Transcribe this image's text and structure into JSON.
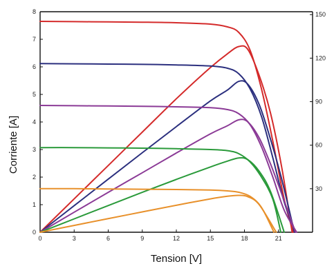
{
  "chart_data": {
    "type": "line",
    "xlabel": "Tension [V]",
    "ylabel": "Corriente [A]",
    "xlim": [
      0,
      24
    ],
    "ylim": [
      0,
      8
    ],
    "y2lim": [
      0,
      152
    ],
    "x_ticks": [
      "0",
      "3",
      "6",
      "9",
      "12",
      "15",
      "18",
      "21"
    ],
    "y_ticks": [
      "0",
      "1",
      "2",
      "3",
      "4",
      "5",
      "6",
      "7",
      "8"
    ],
    "y2_ticks": [
      "30",
      "60",
      "90",
      "120",
      "150"
    ],
    "x_tick_values": [
      0,
      3,
      6,
      9,
      12,
      15,
      18,
      21
    ],
    "y_tick_values": [
      0,
      1,
      2,
      3,
      4,
      5,
      6,
      7,
      8
    ],
    "y2_tick_values": [
      30,
      60,
      90,
      120,
      150
    ],
    "grid": false,
    "series": [
      {
        "color": "#d42a2a",
        "axis": "left",
        "kind": "current",
        "x": [
          0,
          3,
          6,
          9,
          12,
          15,
          16.5,
          17.5,
          18.5,
          19.5,
          20.5,
          21.5,
          22.3
        ],
        "y": [
          7.65,
          7.64,
          7.63,
          7.62,
          7.6,
          7.55,
          7.45,
          7.25,
          6.6,
          5.2,
          3.3,
          1.2,
          0
        ]
      },
      {
        "color": "#d42a2a",
        "axis": "right",
        "kind": "power",
        "x": [
          0,
          3,
          6,
          9,
          12,
          15,
          16.5,
          17.5,
          18.3,
          19.3,
          20.3,
          21.3,
          22.2
        ],
        "y": [
          0,
          23,
          46,
          69,
          92,
          113.5,
          123,
          128,
          126,
          108,
          82,
          44,
          0
        ]
      },
      {
        "color": "#2b2f7e",
        "axis": "left",
        "kind": "current",
        "x": [
          0,
          3,
          6,
          9,
          12,
          15,
          16.5,
          17.5,
          18.5,
          19.5,
          20.5,
          21.5,
          22.5
        ],
        "y": [
          6.12,
          6.11,
          6.1,
          6.09,
          6.07,
          6.03,
          5.95,
          5.75,
          5.2,
          4.2,
          2.7,
          1.1,
          0
        ]
      },
      {
        "color": "#2b2f7e",
        "axis": "right",
        "kind": "power",
        "x": [
          0,
          3,
          6,
          9,
          12,
          15,
          16.5,
          17.5,
          18.3,
          19.3,
          20.3,
          21.3,
          22.4
        ],
        "y": [
          0,
          18.3,
          36.6,
          54.8,
          72.8,
          90.5,
          98,
          104,
          102,
          88,
          64,
          36,
          0
        ]
      },
      {
        "color": "#8b3a96",
        "axis": "left",
        "kind": "current",
        "x": [
          0,
          3,
          6,
          9,
          12,
          15,
          16.5,
          17.5,
          18.5,
          19.5,
          20.5,
          21.5,
          22.6
        ],
        "y": [
          4.6,
          4.59,
          4.58,
          4.57,
          4.55,
          4.52,
          4.45,
          4.3,
          3.9,
          3.1,
          2.0,
          0.8,
          0
        ]
      },
      {
        "color": "#8b3a96",
        "axis": "right",
        "kind": "power",
        "x": [
          0,
          3,
          6,
          9,
          12,
          15,
          16.5,
          17.5,
          18.3,
          19.3,
          20.3,
          21.3,
          22.5
        ],
        "y": [
          0,
          13.8,
          27.5,
          41,
          54.6,
          67.8,
          73.4,
          77.5,
          76,
          65,
          47,
          26,
          0
        ]
      },
      {
        "color": "#2a9a3a",
        "axis": "left",
        "kind": "current",
        "x": [
          0,
          3,
          6,
          9,
          12,
          15,
          16.5,
          17.5,
          18.5,
          19.5,
          20.5,
          21.2
        ],
        "y": [
          3.07,
          3.07,
          3.06,
          3.05,
          3.03,
          3.0,
          2.96,
          2.85,
          2.55,
          2.0,
          1.2,
          0
        ]
      },
      {
        "color": "#2a9a3a",
        "axis": "right",
        "kind": "power",
        "x": [
          0,
          3,
          6,
          9,
          12,
          15,
          16.5,
          17.5,
          18.3,
          19.3,
          20.3,
          21.5
        ],
        "y": [
          0,
          9.2,
          18.4,
          27.5,
          36.4,
          45,
          49,
          51.2,
          50,
          42,
          28,
          0
        ]
      },
      {
        "color": "#e8902a",
        "axis": "left",
        "kind": "current",
        "x": [
          0,
          3,
          6,
          9,
          12,
          15,
          16.5,
          17.5,
          18.5,
          19.5,
          20.6
        ],
        "y": [
          1.58,
          1.58,
          1.57,
          1.56,
          1.55,
          1.53,
          1.5,
          1.45,
          1.3,
          0.9,
          0
        ]
      },
      {
        "color": "#e8902a",
        "axis": "right",
        "kind": "power",
        "x": [
          0,
          3,
          6,
          9,
          12,
          15,
          16.5,
          17.5,
          18.3,
          19.3,
          20.8
        ],
        "y": [
          0,
          4.7,
          9.4,
          14,
          18.6,
          23,
          24.8,
          25.4,
          24.5,
          19,
          0
        ]
      }
    ]
  }
}
